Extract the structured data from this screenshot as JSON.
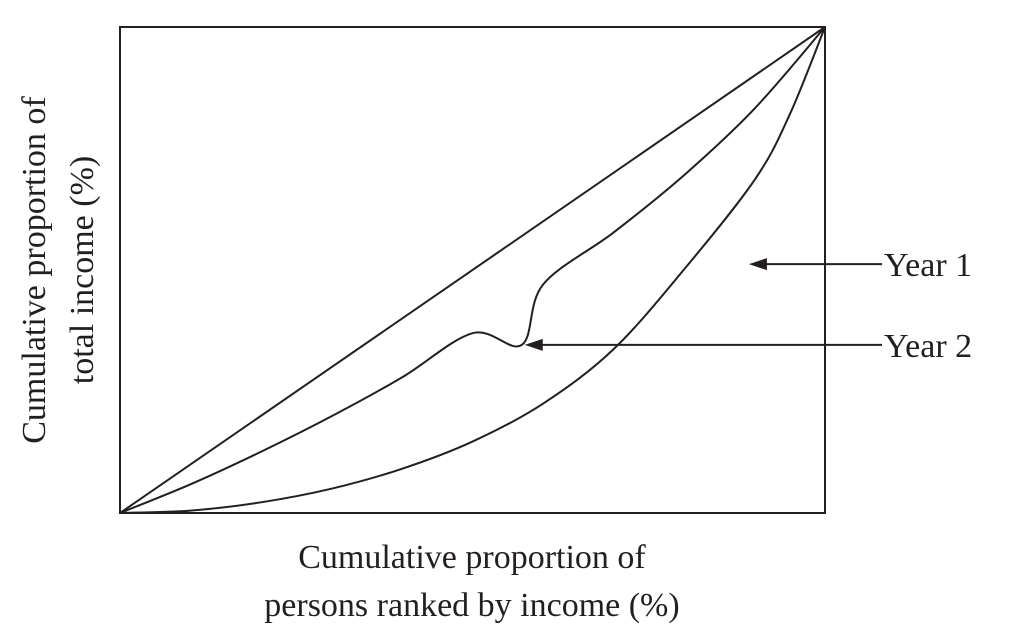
{
  "chart_data": {
    "type": "line",
    "xlabel": [
      "Cumulative proportion of",
      "persons ranked by income (%)"
    ],
    "ylabel": [
      "Cumulative proportion of",
      "total income (%)"
    ],
    "xlim": [
      0,
      100
    ],
    "ylim": [
      0,
      100
    ],
    "grid": false,
    "legend": "callout labels with arrows, right of plot",
    "series": [
      {
        "name": "",
        "x": [
          0,
          100
        ],
        "y": [
          0,
          100
        ]
      },
      {
        "name": "Year 2",
        "x": [
          0,
          10,
          20,
          30,
          40,
          50,
          57,
          60,
          70,
          80,
          90,
          100
        ],
        "y": [
          0,
          5.9,
          12.6,
          19.9,
          27.9,
          37,
          34.6,
          47.0,
          57.7,
          69.5,
          83.2,
          100
        ]
      },
      {
        "name": "Year 1",
        "x": [
          0,
          10,
          20,
          30,
          40,
          50,
          60,
          70,
          80,
          90,
          95,
          100
        ],
        "y": [
          0,
          0.5,
          2.2,
          5.0,
          9.1,
          14.7,
          22.5,
          33.7,
          50.1,
          68.5,
          82.0,
          100
        ]
      }
    ],
    "annotations": [
      {
        "label": "Year 1",
        "x": 88.5,
        "y": 51.2,
        "series": "Year 1"
      },
      {
        "label": "Year 2",
        "x": 56.7,
        "y": 34.6,
        "series": "Year 2"
      }
    ],
    "colors": {
      "line": "#231f20",
      "background": "#ffffff"
    }
  }
}
